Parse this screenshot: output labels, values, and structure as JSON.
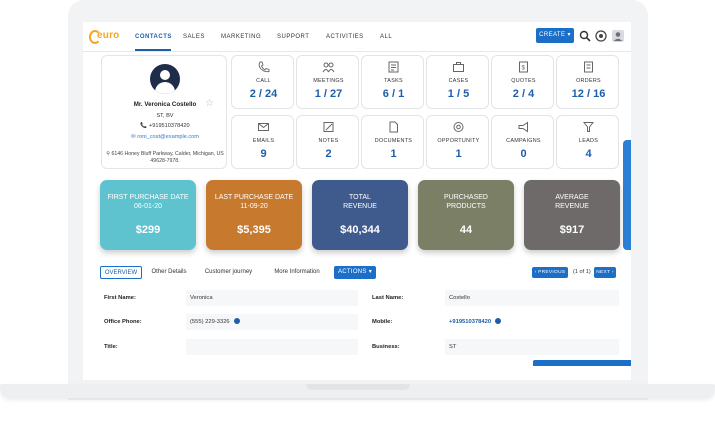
{
  "brand": {
    "logo_text": "euro",
    "logo_sub": ""
  },
  "nav": {
    "items": [
      "CONTACTS",
      "SALES",
      "MARKETING",
      "SUPPORT",
      "ACTIVITIES",
      "ALL"
    ],
    "create_label": "CREATE"
  },
  "profile": {
    "name": "Mr. Veronica Costello",
    "location": "ST, BV",
    "phone": "+919510378420",
    "email": "roni_cost@example.com",
    "address": "6146 Honey Bluff Parkway, Calder, Michigan, US 49628-7978."
  },
  "tiles": [
    {
      "label": "CALL",
      "value": "2 / 24",
      "icon": "phone-icon"
    },
    {
      "label": "MEETINGS",
      "value": "1 / 27",
      "icon": "meetings-icon"
    },
    {
      "label": "TASKS",
      "value": "6 / 1",
      "icon": "tasks-icon"
    },
    {
      "label": "CASES",
      "value": "1 / 5",
      "icon": "cases-icon"
    },
    {
      "label": "QUOTES",
      "value": "2 / 4",
      "icon": "quotes-icon"
    },
    {
      "label": "ORDERS",
      "value": "12 / 16",
      "icon": "orders-icon"
    },
    {
      "label": "EMAILS",
      "value": "9",
      "icon": "email-icon"
    },
    {
      "label": "NOTES",
      "value": "2",
      "icon": "notes-icon"
    },
    {
      "label": "DOCUMENTS",
      "value": "1",
      "icon": "documents-icon"
    },
    {
      "label": "OPPORTUNITY",
      "value": "1",
      "icon": "opportunity-icon"
    },
    {
      "label": "CAMPAIGNS",
      "value": "0",
      "icon": "campaigns-icon"
    },
    {
      "label": "LEADS",
      "value": "4",
      "icon": "leads-icon"
    }
  ],
  "kpis": [
    {
      "label1": "FIRST PURCHASE DATE",
      "label2": "06-01-20",
      "value": "$299",
      "color": "#5fc3cf"
    },
    {
      "label1": "LAST PURCHASE DATE",
      "label2": "11-09-20",
      "value": "$5,395",
      "color": "#c77a2e"
    },
    {
      "label1": "TOTAL",
      "label2": "REVENUE",
      "value": "$40,344",
      "color": "#3f5a8c"
    },
    {
      "label1": "PURCHASED",
      "label2": "PRODUCTS",
      "value": "44",
      "color": "#7b7f66"
    },
    {
      "label1": "AVERAGE",
      "label2": "REVENUE",
      "value": "$917",
      "color": "#6f6a6a"
    }
  ],
  "tabs": [
    "OVERVIEW",
    "Other Details",
    "Customer journey",
    "More Information"
  ],
  "actions_label": "ACTIONS",
  "pager": {
    "prev": "PREVIOUS",
    "info": "(1 of 1)",
    "next": "NEXT"
  },
  "form": {
    "first_name_label": "First Name:",
    "first_name": "Veronica",
    "last_name_label": "Last Name:",
    "last_name": "Costello",
    "office_phone_label": "Office Phone:",
    "office_phone": "(555) 229-3326",
    "mobile_label": "Mobile:",
    "mobile": "+919510378420",
    "title_label": "Title:",
    "title": "",
    "business_label": "Business:",
    "business": "ST"
  }
}
